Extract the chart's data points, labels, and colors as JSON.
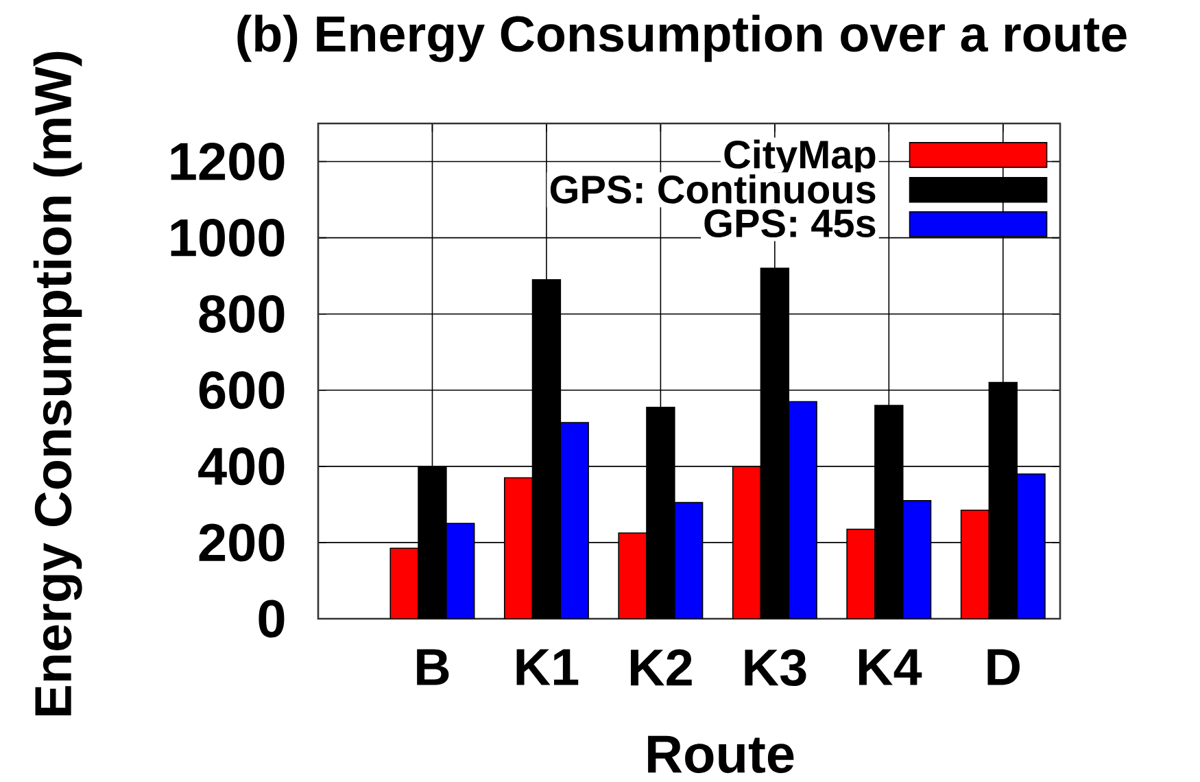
{
  "chart_data": {
    "type": "bar",
    "title": "(b) Energy Consumption over a route",
    "xlabel": "Route",
    "ylabel": "Energy Consumption (mW)",
    "categories": [
      "B",
      "K1",
      "K2",
      "K3",
      "K4",
      "D"
    ],
    "series": [
      {
        "name": "CityMap",
        "color": "#ff0000",
        "values": [
          185,
          370,
          225,
          400,
          235,
          285
        ]
      },
      {
        "name": "GPS: Continuous",
        "color": "#000000",
        "values": [
          400,
          890,
          555,
          920,
          560,
          620
        ]
      },
      {
        "name": "GPS: 45s",
        "color": "#0000ff",
        "values": [
          250,
          515,
          305,
          570,
          310,
          380
        ]
      }
    ],
    "ylim": [
      0,
      1300
    ],
    "yticks": [
      0,
      200,
      400,
      600,
      800,
      1000,
      1200
    ],
    "grid": true,
    "legend": "top right"
  }
}
